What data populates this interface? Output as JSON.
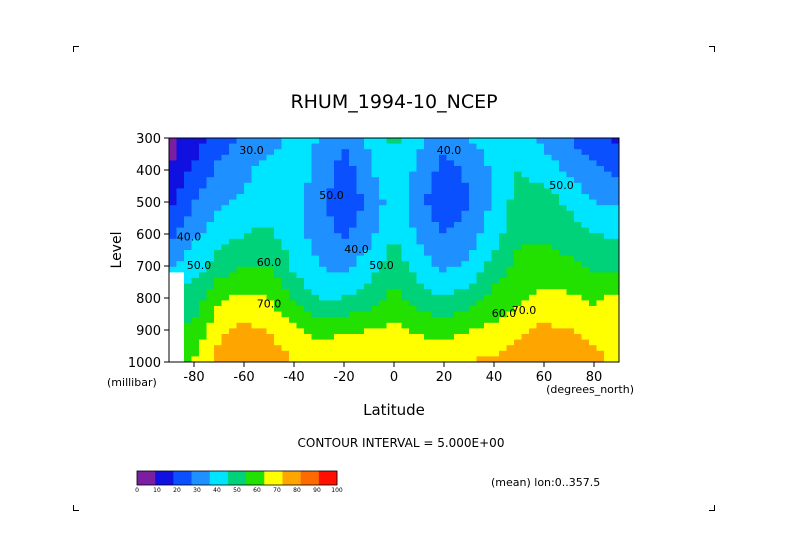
{
  "chart_data": {
    "type": "heatmap",
    "title": "RHUM_1994-10_NCEP",
    "xlabel": "Latitude",
    "ylabel": "Level",
    "x_units": "(degrees_north)",
    "y_units": "(millibar)",
    "xlim": [
      -90,
      90
    ],
    "ylim": [
      1000,
      300
    ],
    "x_ticks": [
      -80,
      -60,
      -40,
      -20,
      0,
      20,
      40,
      60,
      80
    ],
    "x_tick_labels": [
      "-80",
      "-60",
      "-40",
      "-20",
      "0",
      "20",
      "40",
      "60",
      "80"
    ],
    "y_ticks": [
      300,
      400,
      500,
      600,
      700,
      800,
      900,
      1000
    ],
    "y_tick_labels": [
      "300",
      "400",
      "500",
      "600",
      "700",
      "800",
      "900",
      "1000"
    ],
    "contour_interval_text": "CONTOUR INTERVAL = 5.000E+00",
    "note": "(mean) lon:0..357.5",
    "missing_below_ground_color": "#ffffff",
    "colorbar": {
      "levels": [
        0,
        10,
        20,
        30,
        40,
        50,
        60,
        70,
        80,
        90,
        100
      ],
      "level_labels": [
        "0",
        "10",
        "20",
        "30",
        "40",
        "50",
        "60",
        "70",
        "80",
        "90",
        "100"
      ],
      "colors": [
        "#7b1fa2",
        "#1010e0",
        "#0a50ff",
        "#1e90ff",
        "#00e5ff",
        "#00d27a",
        "#22e000",
        "#ffff00",
        "#ffa500",
        "#ff6a00",
        "#ff1000"
      ]
    },
    "contour_labels": [
      {
        "text": "30.0",
        "lat": -57,
        "lev": 350
      },
      {
        "text": "50.0",
        "lat": -25,
        "lev": 490
      },
      {
        "text": "40.0",
        "lat": -15,
        "lev": 660
      },
      {
        "text": "50.0",
        "lat": -5,
        "lev": 710
      },
      {
        "text": "40.0",
        "lat": 22,
        "lev": 350
      },
      {
        "text": "50.0",
        "lat": 67,
        "lev": 460
      },
      {
        "text": "40.0",
        "lat": -82,
        "lev": 620
      },
      {
        "text": "50.0",
        "lat": -78,
        "lev": 710
      },
      {
        "text": "60.0",
        "lat": -50,
        "lev": 700
      },
      {
        "text": "70.0",
        "lat": -50,
        "lev": 830
      },
      {
        "text": "60.0",
        "lat": 44,
        "lev": 860
      },
      {
        "text": "70.0",
        "lat": 52,
        "lev": 850
      }
    ],
    "latitudes": [
      -90,
      -80,
      -70,
      -60,
      -50,
      -40,
      -30,
      -20,
      -10,
      0,
      10,
      20,
      30,
      40,
      50,
      60,
      70,
      80,
      90
    ],
    "levels": [
      300,
      400,
      500,
      600,
      700,
      800,
      900,
      1000
    ],
    "values": [
      [
        5,
        15,
        25,
        32,
        36,
        42,
        40,
        32,
        42,
        52,
        42,
        33,
        40,
        45,
        42,
        38,
        30,
        22,
        18
      ],
      [
        10,
        22,
        32,
        38,
        43,
        45,
        38,
        24,
        38,
        50,
        37,
        26,
        32,
        42,
        50,
        45,
        38,
        32,
        28
      ],
      [
        18,
        30,
        38,
        42,
        45,
        42,
        34,
        22,
        32,
        45,
        34,
        20,
        30,
        42,
        55,
        55,
        48,
        40,
        38
      ],
      [
        25,
        38,
        45,
        50,
        52,
        45,
        35,
        28,
        37,
        50,
        38,
        30,
        35,
        45,
        58,
        58,
        55,
        50,
        48
      ],
      [
        40,
        45,
        55,
        60,
        60,
        48,
        40,
        37,
        45,
        55,
        45,
        38,
        42,
        55,
        63,
        65,
        62,
        58,
        58
      ],
      [
        55,
        55,
        68,
        72,
        70,
        58,
        50,
        50,
        55,
        63,
        55,
        50,
        55,
        63,
        68,
        72,
        72,
        68,
        72
      ],
      [
        62,
        62,
        78,
        82,
        80,
        72,
        66,
        68,
        70,
        72,
        68,
        66,
        70,
        72,
        78,
        82,
        80,
        78,
        80
      ],
      [
        70,
        70,
        85,
        88,
        86,
        80,
        78,
        80,
        80,
        80,
        78,
        78,
        80,
        82,
        86,
        90,
        85,
        82,
        78
      ]
    ]
  }
}
